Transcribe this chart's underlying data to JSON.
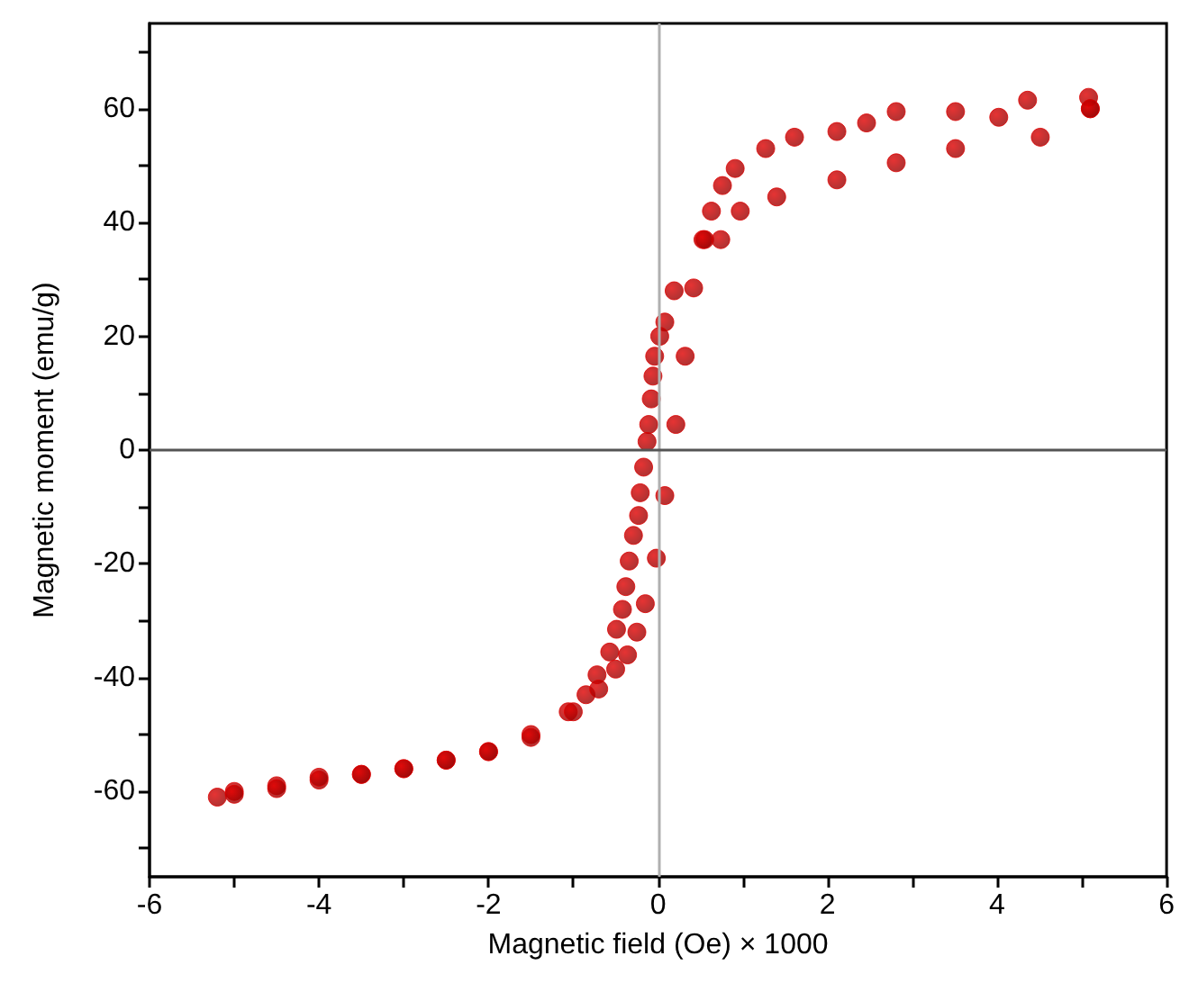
{
  "chart_data": {
    "type": "scatter",
    "xlabel": "Magnetic field (Oe) × 1000",
    "ylabel": "Magnetic moment (emu/g)",
    "xlim": [
      -6,
      6
    ],
    "ylim": [
      -75,
      75
    ],
    "xticks": [
      -6,
      {
        "value": -5,
        "label": null
      },
      -4,
      {
        "value": -3,
        "label": null
      },
      -2,
      {
        "value": -1,
        "label": null
      },
      0,
      {
        "value": 1,
        "label": null
      },
      2,
      {
        "value": 3,
        "label": null
      },
      4,
      {
        "value": 5,
        "label": null
      },
      6
    ],
    "yticks": [
      {
        "value": -70,
        "label": null
      },
      -60,
      {
        "value": -50,
        "label": null
      },
      -40,
      {
        "value": -30,
        "label": null
      },
      -20,
      {
        "value": -10,
        "label": null
      },
      0,
      {
        "value": 10,
        "label": null
      },
      20,
      {
        "value": 30,
        "label": null
      },
      40,
      {
        "value": 50,
        "label": null
      },
      60,
      {
        "value": 70,
        "label": null
      }
    ],
    "marker": "circle",
    "ref_lines": [
      {
        "axis": "x",
        "value": 0,
        "color": "#b0b0b0"
      },
      {
        "axis": "y",
        "value": 0,
        "color": "#555555"
      }
    ],
    "series": [
      {
        "color": "#e00000",
        "x": [
          5.1,
          5.08,
          4.36,
          4.02,
          3.51,
          2.81,
          2.46,
          2.11,
          1.61,
          1.27,
          0.91,
          0.76,
          0.63,
          0.53,
          0.19,
          0.08,
          0.02,
          -0.04,
          -0.06,
          -0.08,
          -0.11,
          -0.13,
          -0.17,
          -0.21,
          -0.23,
          -0.29,
          -0.34,
          -0.38,
          -0.42,
          -0.49,
          -0.57,
          -0.72,
          -0.85,
          -1.06,
          -1.5,
          -2,
          -2.5,
          -3,
          -3.5,
          -4,
          -4.5,
          -5,
          -5.2,
          -5,
          -4.5,
          -4,
          -3.5,
          -3,
          -2.5,
          -2,
          -1.5,
          -1,
          -0.7,
          -0.5,
          -0.36,
          -0.25,
          -0.15,
          -0.02,
          0.08,
          0.21,
          0.32,
          0.42,
          0.55,
          0.74,
          0.97,
          1.4,
          2.11,
          2.81,
          3.51,
          4.51,
          5.1
        ],
        "values": [
          60,
          62,
          61.5,
          58.5,
          59.5,
          59.5,
          57.5,
          56,
          55,
          53,
          49.5,
          46.5,
          42,
          37,
          28,
          22.5,
          20,
          16.5,
          13,
          9,
          4.5,
          1.5,
          -3,
          -7.5,
          -11.5,
          -15,
          -19.5,
          -24,
          -28,
          -31.5,
          -35.5,
          -39.5,
          -43,
          -46,
          -50,
          -53,
          -54.5,
          -56,
          -57,
          -58,
          -59,
          -60,
          -61,
          -60.5,
          -59.5,
          -57.5,
          -57,
          -56,
          -54.5,
          -53,
          -50.5,
          -46,
          -42,
          -38.5,
          -36,
          -32,
          -27,
          -19,
          -8,
          4.5,
          16.5,
          28.5,
          37,
          37,
          42,
          44.5,
          47.5,
          50.5,
          53,
          55,
          60
        ]
      }
    ]
  }
}
